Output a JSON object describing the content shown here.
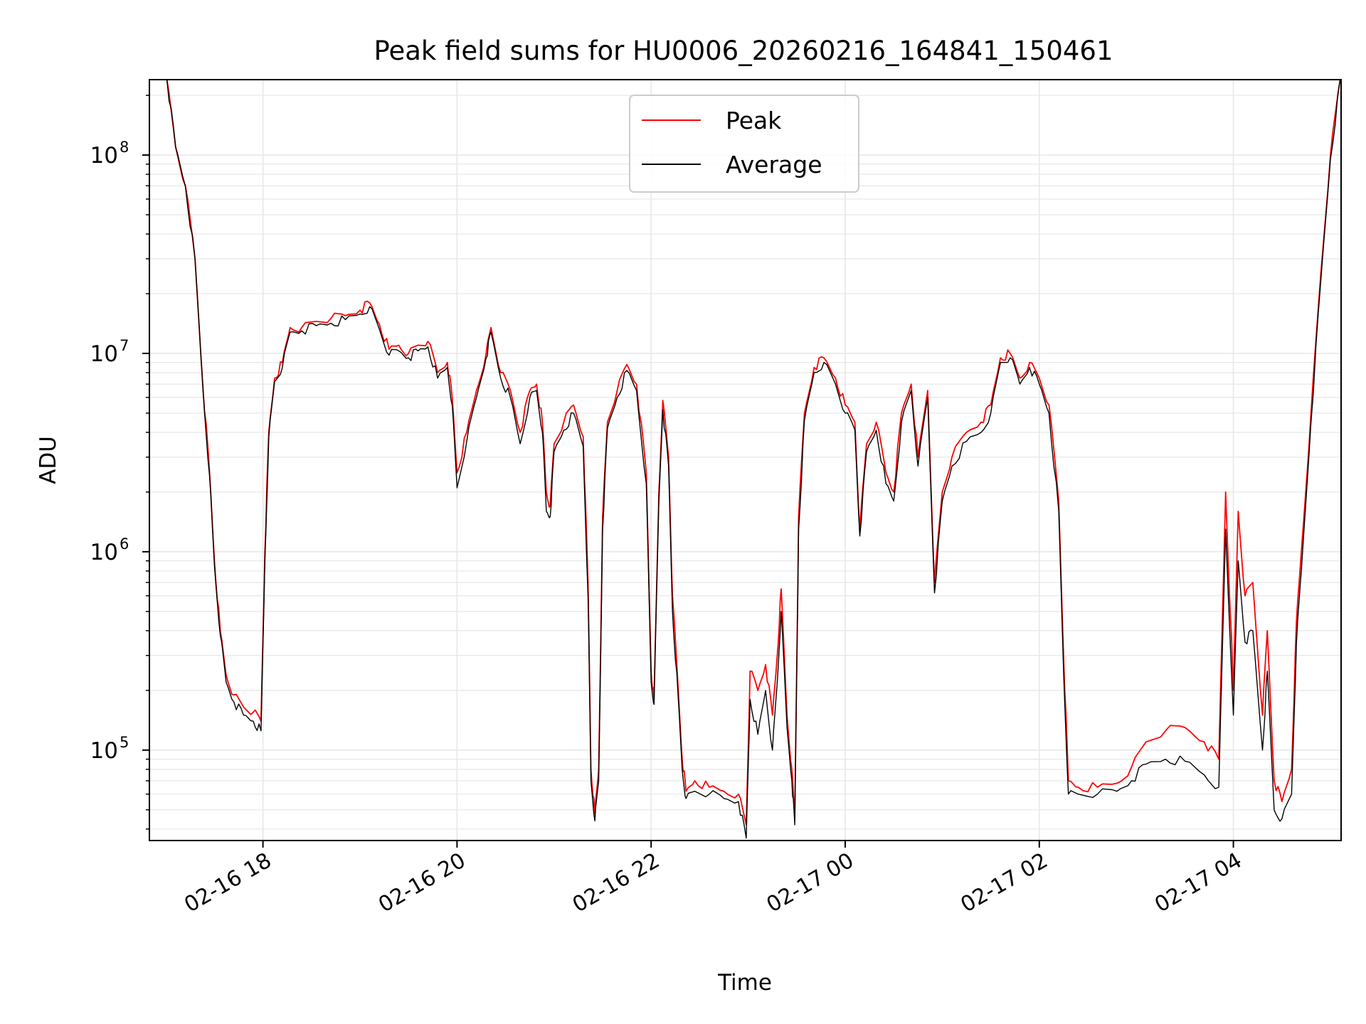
{
  "chart_data": {
    "type": "line",
    "title": "Peak field sums for HU0006_20260216_164841_150461",
    "xlabel": "Time",
    "ylabel": "ADU",
    "yscale": "log",
    "ylim": [
      35000,
      240000000
    ],
    "xlim": [
      16.83,
      29.11
    ],
    "grid": true,
    "legend_position": "top-center",
    "x_ticks": [
      {
        "value": 18,
        "label": "02-16 18"
      },
      {
        "value": 20,
        "label": "02-16 20"
      },
      {
        "value": 22,
        "label": "02-16 22"
      },
      {
        "value": 24,
        "label": "02-17 00"
      },
      {
        "value": 26,
        "label": "02-17 02"
      },
      {
        "value": 28,
        "label": "02-17 04"
      }
    ],
    "y_ticks": [
      {
        "value": 100000,
        "base": "10",
        "exp": "5"
      },
      {
        "value": 1000000,
        "base": "10",
        "exp": "6"
      },
      {
        "value": 10000000,
        "base": "10",
        "exp": "7"
      },
      {
        "value": 100000000,
        "base": "10",
        "exp": "8"
      }
    ],
    "series": [
      {
        "name": "Peak",
        "color": "#ff0000",
        "points": [
          [
            17.01,
            240000000
          ],
          [
            17.1,
            110000000
          ],
          [
            17.2,
            70000000
          ],
          [
            17.3,
            30000000
          ],
          [
            17.38,
            7000000
          ],
          [
            17.45,
            2500000
          ],
          [
            17.5,
            900000
          ],
          [
            17.56,
            400000
          ],
          [
            17.62,
            240000
          ],
          [
            17.7,
            190000
          ],
          [
            17.8,
            165000
          ],
          [
            17.9,
            155000
          ],
          [
            17.98,
            140000
          ],
          [
            18.02,
            1000000
          ],
          [
            18.06,
            4000000
          ],
          [
            18.12,
            7500000
          ],
          [
            18.2,
            9000000
          ],
          [
            18.28,
            13500000
          ],
          [
            18.4,
            13500000
          ],
          [
            18.55,
            14500000
          ],
          [
            18.7,
            15000000
          ],
          [
            18.85,
            15500000
          ],
          [
            19.0,
            16500000
          ],
          [
            19.1,
            18000000
          ],
          [
            19.2,
            14000000
          ],
          [
            19.3,
            10500000
          ],
          [
            19.4,
            11000000
          ],
          [
            19.5,
            10000000
          ],
          [
            19.6,
            11000000
          ],
          [
            19.7,
            11500000
          ],
          [
            19.8,
            8000000
          ],
          [
            19.9,
            9000000
          ],
          [
            19.95,
            6000000
          ],
          [
            20.0,
            2500000
          ],
          [
            20.1,
            4000000
          ],
          [
            20.2,
            6500000
          ],
          [
            20.3,
            10000000
          ],
          [
            20.35,
            13500000
          ],
          [
            20.45,
            8000000
          ],
          [
            20.55,
            6500000
          ],
          [
            20.65,
            4000000
          ],
          [
            20.75,
            6500000
          ],
          [
            20.82,
            7000000
          ],
          [
            20.88,
            4500000
          ],
          [
            20.92,
            2000000
          ],
          [
            20.96,
            1700000
          ],
          [
            21.0,
            3500000
          ],
          [
            21.1,
            4500000
          ],
          [
            21.2,
            5500000
          ],
          [
            21.3,
            3800000
          ],
          [
            21.35,
            700000
          ],
          [
            21.38,
            80000
          ],
          [
            21.42,
            48000
          ],
          [
            21.46,
            80000
          ],
          [
            21.5,
            1500000
          ],
          [
            21.55,
            4500000
          ],
          [
            21.65,
            6500000
          ],
          [
            21.75,
            8800000
          ],
          [
            21.85,
            7000000
          ],
          [
            21.95,
            2500000
          ],
          [
            22.0,
            250000
          ],
          [
            22.03,
            180000
          ],
          [
            22.08,
            2000000
          ],
          [
            22.12,
            5800000
          ],
          [
            22.18,
            3000000
          ],
          [
            22.22,
            600000
          ],
          [
            22.28,
            200000
          ],
          [
            22.32,
            90000
          ],
          [
            22.36,
            62000
          ],
          [
            22.45,
            70000
          ],
          [
            22.6,
            65000
          ],
          [
            22.75,
            62000
          ],
          [
            22.9,
            60000
          ],
          [
            22.98,
            42000
          ],
          [
            23.02,
            250000
          ],
          [
            23.1,
            200000
          ],
          [
            23.18,
            270000
          ],
          [
            23.25,
            150000
          ],
          [
            23.3,
            300000
          ],
          [
            23.34,
            650000
          ],
          [
            23.4,
            150000
          ],
          [
            23.45,
            80000
          ],
          [
            23.48,
            45000
          ],
          [
            23.52,
            1500000
          ],
          [
            23.58,
            5000000
          ],
          [
            23.68,
            8500000
          ],
          [
            23.78,
            9500000
          ],
          [
            23.9,
            7500000
          ],
          [
            24.0,
            5500000
          ],
          [
            24.1,
            4500000
          ],
          [
            24.15,
            1300000
          ],
          [
            24.22,
            3500000
          ],
          [
            24.32,
            4500000
          ],
          [
            24.42,
            2500000
          ],
          [
            24.5,
            2000000
          ],
          [
            24.58,
            5000000
          ],
          [
            24.68,
            7000000
          ],
          [
            24.75,
            3000000
          ],
          [
            24.85,
            6500000
          ],
          [
            24.92,
            700000
          ],
          [
            25.0,
            2000000
          ],
          [
            25.1,
            3000000
          ],
          [
            25.25,
            4000000
          ],
          [
            25.4,
            4500000
          ],
          [
            25.5,
            5500000
          ],
          [
            25.6,
            9500000
          ],
          [
            25.7,
            10000000
          ],
          [
            25.8,
            7500000
          ],
          [
            25.9,
            9000000
          ],
          [
            26.0,
            7500000
          ],
          [
            26.1,
            5500000
          ],
          [
            26.2,
            1800000
          ],
          [
            26.25,
            300000
          ],
          [
            26.3,
            70000
          ],
          [
            26.4,
            65000
          ],
          [
            26.6,
            65000
          ],
          [
            26.8,
            68000
          ],
          [
            26.95,
            82000
          ],
          [
            27.1,
            110000
          ],
          [
            27.3,
            125000
          ],
          [
            27.5,
            130000
          ],
          [
            27.7,
            110000
          ],
          [
            27.85,
            90000
          ],
          [
            27.92,
            2000000
          ],
          [
            28.0,
            200000
          ],
          [
            28.05,
            1600000
          ],
          [
            28.12,
            600000
          ],
          [
            28.2,
            700000
          ],
          [
            28.3,
            150000
          ],
          [
            28.35,
            400000
          ],
          [
            28.42,
            70000
          ],
          [
            28.5,
            55000
          ],
          [
            28.6,
            80000
          ],
          [
            28.65,
            450000
          ],
          [
            28.7,
            1000000
          ],
          [
            28.8,
            5000000
          ],
          [
            28.9,
            25000000
          ],
          [
            29.0,
            100000000
          ],
          [
            29.1,
            240000000
          ]
        ]
      },
      {
        "name": "Average",
        "color": "#000000",
        "points": [
          [
            17.01,
            240000000
          ],
          [
            17.1,
            110000000
          ],
          [
            17.2,
            70000000
          ],
          [
            17.3,
            30000000
          ],
          [
            17.38,
            6800000
          ],
          [
            17.45,
            2400000
          ],
          [
            17.5,
            850000
          ],
          [
            17.56,
            380000
          ],
          [
            17.62,
            220000
          ],
          [
            17.7,
            175000
          ],
          [
            17.8,
            150000
          ],
          [
            17.9,
            140000
          ],
          [
            17.98,
            125000
          ],
          [
            18.02,
            900000
          ],
          [
            18.06,
            3800000
          ],
          [
            18.12,
            7200000
          ],
          [
            18.2,
            8500000
          ],
          [
            18.28,
            12800000
          ],
          [
            18.4,
            13000000
          ],
          [
            18.55,
            13800000
          ],
          [
            18.7,
            14200000
          ],
          [
            18.85,
            14800000
          ],
          [
            19.0,
            15800000
          ],
          [
            19.1,
            17200000
          ],
          [
            19.2,
            13200000
          ],
          [
            19.3,
            9800000
          ],
          [
            19.4,
            10300000
          ],
          [
            19.5,
            9500000
          ],
          [
            19.6,
            10300000
          ],
          [
            19.7,
            10800000
          ],
          [
            19.8,
            7500000
          ],
          [
            19.9,
            8500000
          ],
          [
            19.95,
            5500000
          ],
          [
            20.0,
            2100000
          ],
          [
            20.1,
            3600000
          ],
          [
            20.2,
            6000000
          ],
          [
            20.3,
            9500000
          ],
          [
            20.35,
            12800000
          ],
          [
            20.45,
            7500000
          ],
          [
            20.55,
            6000000
          ],
          [
            20.65,
            3500000
          ],
          [
            20.75,
            6000000
          ],
          [
            20.82,
            6500000
          ],
          [
            20.88,
            4000000
          ],
          [
            20.92,
            1600000
          ],
          [
            20.96,
            1500000
          ],
          [
            21.0,
            3200000
          ],
          [
            21.1,
            4100000
          ],
          [
            21.2,
            5000000
          ],
          [
            21.3,
            3400000
          ],
          [
            21.35,
            600000
          ],
          [
            21.38,
            70000
          ],
          [
            21.42,
            44000
          ],
          [
            21.46,
            70000
          ],
          [
            21.5,
            1300000
          ],
          [
            21.55,
            4200000
          ],
          [
            21.65,
            6000000
          ],
          [
            21.75,
            8200000
          ],
          [
            21.85,
            6500000
          ],
          [
            21.95,
            2200000
          ],
          [
            22.0,
            220000
          ],
          [
            22.03,
            170000
          ],
          [
            22.08,
            1800000
          ],
          [
            22.12,
            5200000
          ],
          [
            22.18,
            2700000
          ],
          [
            22.22,
            500000
          ],
          [
            22.28,
            180000
          ],
          [
            22.32,
            80000
          ],
          [
            22.36,
            57000
          ],
          [
            22.45,
            62000
          ],
          [
            22.6,
            60000
          ],
          [
            22.75,
            57000
          ],
          [
            22.9,
            55000
          ],
          [
            22.98,
            36000
          ],
          [
            23.02,
            180000
          ],
          [
            23.1,
            120000
          ],
          [
            23.18,
            200000
          ],
          [
            23.25,
            100000
          ],
          [
            23.3,
            220000
          ],
          [
            23.34,
            500000
          ],
          [
            23.4,
            130000
          ],
          [
            23.45,
            70000
          ],
          [
            23.48,
            42000
          ],
          [
            23.52,
            1300000
          ],
          [
            23.58,
            4600000
          ],
          [
            23.68,
            8000000
          ],
          [
            23.78,
            9000000
          ],
          [
            23.9,
            7000000
          ],
          [
            24.0,
            5000000
          ],
          [
            24.1,
            4100000
          ],
          [
            24.15,
            1200000
          ],
          [
            24.22,
            3200000
          ],
          [
            24.32,
            4100000
          ],
          [
            24.42,
            2200000
          ],
          [
            24.5,
            1800000
          ],
          [
            24.58,
            4500000
          ],
          [
            24.68,
            6500000
          ],
          [
            24.75,
            2700000
          ],
          [
            24.85,
            6000000
          ],
          [
            24.92,
            620000
          ],
          [
            25.0,
            1800000
          ],
          [
            25.1,
            2700000
          ],
          [
            25.25,
            3600000
          ],
          [
            25.4,
            4000000
          ],
          [
            25.5,
            5000000
          ],
          [
            25.6,
            9000000
          ],
          [
            25.7,
            9500000
          ],
          [
            25.8,
            7000000
          ],
          [
            25.9,
            8500000
          ],
          [
            26.0,
            7000000
          ],
          [
            26.1,
            5000000
          ],
          [
            26.2,
            1600000
          ],
          [
            26.25,
            250000
          ],
          [
            26.3,
            60000
          ],
          [
            26.4,
            60000
          ],
          [
            26.6,
            60000
          ],
          [
            26.8,
            62000
          ],
          [
            26.95,
            70000
          ],
          [
            27.1,
            85000
          ],
          [
            27.3,
            90000
          ],
          [
            27.5,
            88000
          ],
          [
            27.7,
            75000
          ],
          [
            27.85,
            65000
          ],
          [
            27.92,
            1300000
          ],
          [
            28.0,
            150000
          ],
          [
            28.05,
            900000
          ],
          [
            28.12,
            350000
          ],
          [
            28.2,
            400000
          ],
          [
            28.3,
            100000
          ],
          [
            28.35,
            250000
          ],
          [
            28.42,
            50000
          ],
          [
            28.5,
            45000
          ],
          [
            28.6,
            60000
          ],
          [
            28.65,
            350000
          ],
          [
            28.7,
            800000
          ],
          [
            28.8,
            4500000
          ],
          [
            28.9,
            23000000
          ],
          [
            29.0,
            95000000
          ],
          [
            29.1,
            240000000
          ]
        ]
      }
    ]
  }
}
